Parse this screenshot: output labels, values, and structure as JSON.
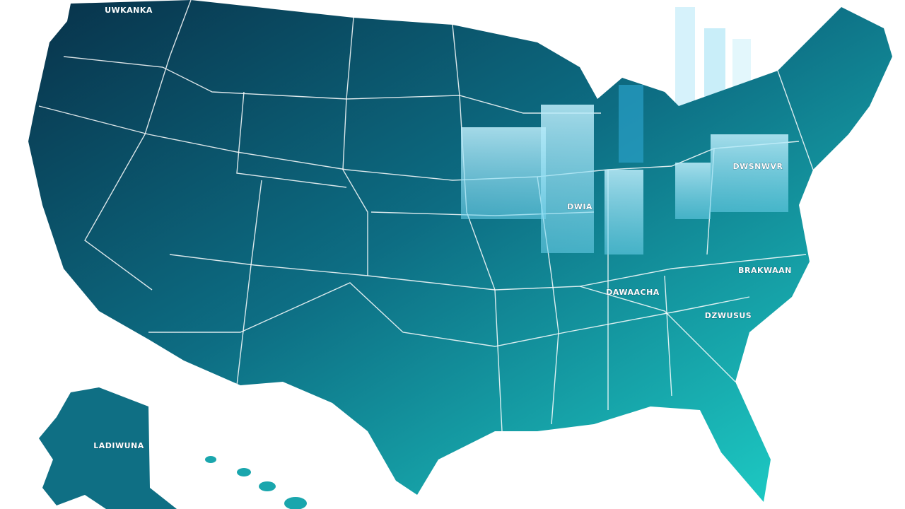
{
  "labels": [
    {
      "text": "UWKANKA"
    },
    {
      "text": "DWSNWVR"
    },
    {
      "text": "DWIA"
    },
    {
      "text": "BRAKWAAN"
    },
    {
      "text": "DAWAACHA"
    },
    {
      "text": "DZWUSUS"
    },
    {
      "text": "LADIWUNA"
    }
  ]
}
